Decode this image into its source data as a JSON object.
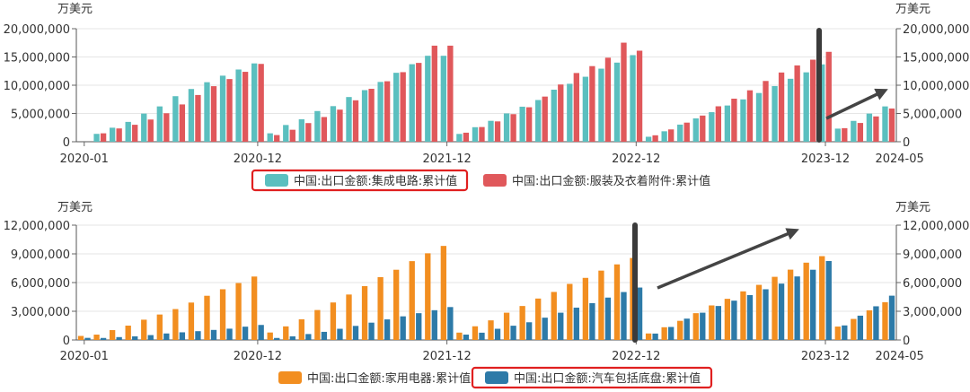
{
  "chart_data": [
    {
      "type": "bar",
      "unit_left": "万美元",
      "unit_right": "万美元",
      "ylim": [
        0,
        20000000
      ],
      "y_ticks": [
        "0",
        "5,000,000",
        "10,000,000",
        "15,000,000",
        "20,000,000"
      ],
      "x_tick_labels": [
        "2020-01",
        "2020-12",
        "2021-12",
        "2022-12",
        "2023-12",
        "2024-05"
      ],
      "colors": [
        "#5BBFBF",
        "#E0585B"
      ],
      "series": [
        {
          "name": "中国:出口金额:集成电路:累计值",
          "values": [
            0,
            1390000,
            2480000,
            3510000,
            4980000,
            6250000,
            8060000,
            9330000,
            10530000,
            11690000,
            12780000,
            13860000,
            1490000,
            2960000,
            3970000,
            5430000,
            6300000,
            7910000,
            9130000,
            10580000,
            12200000,
            13720000,
            15210000,
            15210000,
            1380000,
            2570000,
            3700000,
            5010000,
            6200000,
            7380000,
            9210000,
            10250000,
            11500000,
            12930000,
            14000000,
            15320000,
            880000,
            1850000,
            3030000,
            4130000,
            5230000,
            6410000,
            7490000,
            8620000,
            9850000,
            11140000,
            12280000,
            13690000,
            2320000,
            3690000,
            4980000,
            6250000
          ]
        },
        {
          "name": "中国:出口金额:服装及衣着附件:累计值",
          "values": [
            0,
            1490000,
            2350000,
            3000000,
            3930000,
            5040000,
            6600000,
            8270000,
            9830000,
            11090000,
            12370000,
            13770000,
            1180000,
            2120000,
            3300000,
            4370000,
            5680000,
            7330000,
            9370000,
            10700000,
            12310000,
            13950000,
            17000000,
            17000000,
            1600000,
            2600000,
            3600000,
            4880000,
            6100000,
            7990000,
            10130000,
            12160000,
            13380000,
            14870000,
            17530000,
            16110000,
            1140000,
            2180000,
            3380000,
            4630000,
            6270000,
            7620000,
            9100000,
            10750000,
            12250000,
            13500000,
            14520000,
            15910000,
            2400000,
            3320000,
            4480000,
            5880000
          ]
        }
      ]
    },
    {
      "type": "bar",
      "unit_left": "万美元",
      "unit_right": "万美元",
      "ylim": [
        0,
        12000000
      ],
      "y_ticks": [
        "0",
        "3,000,000",
        "6,000,000",
        "9,000,000",
        "12,000,000"
      ],
      "x_tick_labels": [
        "2020-01",
        "2020-12",
        "2021-12",
        "2022-12",
        "2023-12",
        "2024-05"
      ],
      "colors": [
        "#F28E20",
        "#2D7AA8"
      ],
      "series": [
        {
          "name": "中国:出口金额:家用电器:累计值",
          "values": [
            420000,
            560000,
            1030000,
            1500000,
            2120000,
            2660000,
            3230000,
            3910000,
            4620000,
            5300000,
            5950000,
            6630000,
            780000,
            1420000,
            2160000,
            3130000,
            3920000,
            4750000,
            5630000,
            6570000,
            7340000,
            8240000,
            9060000,
            9830000,
            770000,
            1430000,
            2050000,
            2850000,
            3550000,
            4330000,
            5020000,
            5860000,
            6490000,
            7250000,
            7900000,
            8570000,
            680000,
            1330000,
            2000000,
            2800000,
            3610000,
            4300000,
            5080000,
            5760000,
            6600000,
            7350000,
            8080000,
            8760000,
            1400000,
            2200000,
            3100000,
            3950000
          ]
        },
        {
          "name": "中国:出口金额:汽车包括底盘:累计值",
          "values": [
            220000,
            210000,
            300000,
            380000,
            510000,
            680000,
            800000,
            920000,
            1050000,
            1180000,
            1390000,
            1570000,
            210000,
            380000,
            620000,
            850000,
            1170000,
            1470000,
            1810000,
            2150000,
            2470000,
            2800000,
            3110000,
            3440000,
            560000,
            760000,
            1170000,
            1490000,
            1850000,
            2330000,
            2850000,
            3380000,
            3850000,
            4430000,
            5010000,
            5480000,
            670000,
            1360000,
            2230000,
            2850000,
            3550000,
            4110000,
            4690000,
            5300000,
            5890000,
            6640000,
            7340000,
            8250000,
            1520000,
            2540000,
            3520000,
            4630000
          ]
        }
      ]
    }
  ]
}
